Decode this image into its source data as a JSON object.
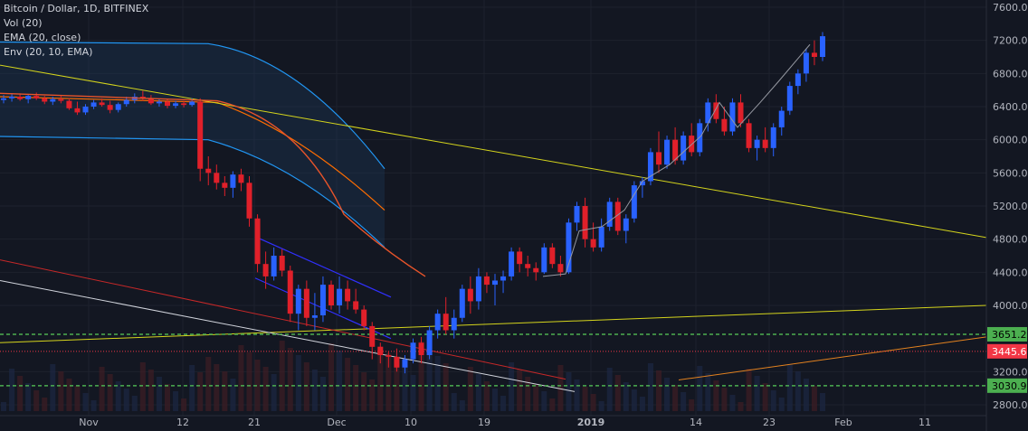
{
  "chart_data": {
    "type": "candlestick",
    "legend": {
      "symbol": "Bitcoin / Dollar, 1D, BITFINEX",
      "volume": "Vol (20)",
      "ema": "EMA (20, close)",
      "envelope": "Env (20, 10, EMA)"
    },
    "y_axis": {
      "ticks": [
        "7600.0",
        "7200.0",
        "6800.0",
        "6400.0",
        "6000.0",
        "5600.0",
        "5200.0",
        "4800.0",
        "4400.0",
        "4000.0",
        "3200.0",
        "2800.0"
      ],
      "ylim": [
        2750,
        7650
      ]
    },
    "x_axis": {
      "ticks": [
        "Nov",
        "12",
        "21",
        "Dec",
        "10",
        "19",
        "2019",
        "14",
        "23",
        "Feb",
        "11"
      ]
    },
    "horizontal_lines": [
      {
        "value": 3651.2,
        "label": "3651.2",
        "style": "dashed",
        "color": "#4caf50"
      },
      {
        "value": 3030.9,
        "label": "3030.9",
        "style": "dashed",
        "color": "#4caf50"
      }
    ],
    "last_price": {
      "value": 3445.6,
      "label": "3445.6",
      "color": "#f23645"
    },
    "colors": {
      "up": "#2962ff",
      "down": "#e0202a",
      "background": "#131722",
      "trendline_yellow": "#d4d41c",
      "trendline_red": "#c62828",
      "trendline_white": "#d1d4dc",
      "trendline_orange": "#e3821f",
      "ema": "#e8542a",
      "envelope_upper": "#2196f3",
      "envelope_lower": "#2196f3",
      "envelope_mid": "#ff6d00",
      "channel": "#3030ff",
      "level": "#4caf50"
    }
  }
}
